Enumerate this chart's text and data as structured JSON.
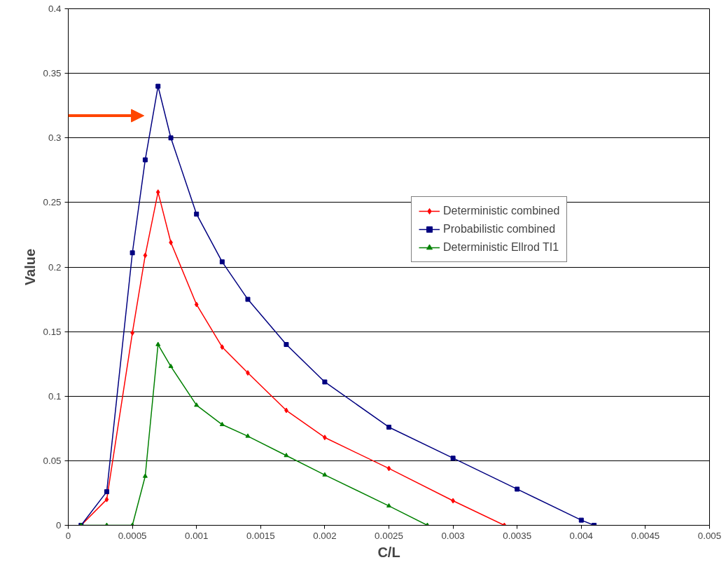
{
  "chart_data": {
    "type": "line",
    "xlabel": "C/L",
    "ylabel": "Value",
    "xlim": [
      0,
      0.005
    ],
    "xticks": [
      0,
      0.0005,
      0.001,
      0.0015,
      0.002,
      0.0025,
      0.003,
      0.0035,
      0.004,
      0.0045,
      0.005
    ],
    "ylim": [
      0,
      0.4
    ],
    "yticks": [
      0,
      0.05,
      0.1,
      0.15,
      0.2,
      0.25,
      0.3,
      0.35,
      0.4
    ],
    "grid": "y",
    "legend": "right",
    "series": [
      {
        "name": "Deterministic combined",
        "color": "#ff0000",
        "marker": "diamond",
        "x": [
          0.0001,
          0.0003,
          0.0005,
          0.0006,
          0.0007,
          0.0008,
          0.001,
          0.0012,
          0.0014,
          0.0017,
          0.002,
          0.0025,
          0.003,
          0.0034
        ],
        "values": [
          0,
          0.02,
          0.149,
          0.209,
          0.258,
          0.219,
          0.171,
          0.138,
          0.118,
          0.089,
          0.068,
          0.044,
          0.019,
          0
        ]
      },
      {
        "name": "Probabilistic combined",
        "color": "#000080",
        "marker": "square",
        "x": [
          0.0001,
          0.0003,
          0.0005,
          0.0006,
          0.0007,
          0.0008,
          0.001,
          0.0012,
          0.0014,
          0.0017,
          0.002,
          0.0025,
          0.003,
          0.0035,
          0.004,
          0.0041
        ],
        "values": [
          0,
          0.026,
          0.211,
          0.283,
          0.34,
          0.3,
          0.241,
          0.204,
          0.175,
          0.14,
          0.111,
          0.076,
          0.052,
          0.028,
          0.004,
          0
        ]
      },
      {
        "name": "Deterministic Ellrod TI1",
        "color": "#008000",
        "marker": "triangle",
        "x": [
          0.0001,
          0.0003,
          0.0005,
          0.0006,
          0.0007,
          0.0008,
          0.001,
          0.0012,
          0.0014,
          0.0017,
          0.002,
          0.0025,
          0.0028
        ],
        "values": [
          0,
          0,
          0,
          0.038,
          0.14,
          0.123,
          0.093,
          0.078,
          0.069,
          0.054,
          0.039,
          0.015,
          0
        ]
      }
    ]
  }
}
